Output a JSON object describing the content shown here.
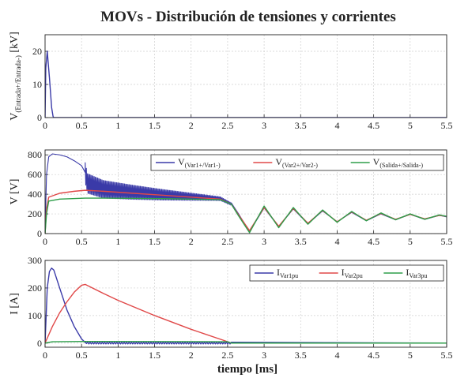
{
  "title": "MOVs - Distribución de tensiones y corrientes",
  "xlabel": "tiempo [ms]",
  "colors": {
    "blue": "#3a3aa8",
    "red": "#e04848",
    "green": "#2e9e4a"
  },
  "chart_data": [
    {
      "type": "line",
      "ylabel_main": "V",
      "ylabel_sub": "(Entrada+/Entrada-)",
      "ylabel_unit": " [kV]",
      "xlim": [
        0,
        5.5
      ],
      "ylim": [
        0,
        25
      ],
      "xticks": [
        0,
        0.5,
        1,
        1.5,
        2,
        2.5,
        3,
        3.5,
        4,
        4.5,
        5,
        5.5
      ],
      "xtick_labels": [
        "0",
        "0.5",
        "1",
        "1.5",
        "2",
        "2.5",
        "3",
        "3.5",
        "4",
        "4.5",
        "5",
        "5.5"
      ],
      "yticks": [
        0,
        10,
        20
      ],
      "ytick_labels": [
        "0",
        "10",
        "20"
      ],
      "grid": true,
      "series": [
        {
          "color": "blue",
          "x": [
            0,
            0.01,
            0.03,
            0.06,
            0.09,
            0.11,
            0.12,
            5.5
          ],
          "y": [
            0,
            15,
            20,
            12,
            3,
            0.3,
            0,
            0
          ]
        }
      ]
    },
    {
      "type": "line",
      "ylabel_main": "V [V]",
      "xlim": [
        0,
        5.5
      ],
      "ylim": [
        0,
        850
      ],
      "xticks": [
        0,
        0.5,
        1,
        1.5,
        2,
        2.5,
        3,
        3.5,
        4,
        4.5,
        5,
        5.5
      ],
      "xtick_labels": [
        "0",
        "0.5",
        "1",
        "1.5",
        "2",
        "2.5",
        "3",
        "3.5",
        "4",
        "4.5",
        "5",
        "5.5"
      ],
      "yticks": [
        0,
        200,
        400,
        600,
        800
      ],
      "ytick_labels": [
        "0",
        "200",
        "400",
        "600",
        "800"
      ],
      "grid": true,
      "legend_position": "top-right",
      "legend": [
        {
          "main": "V",
          "sub": "(Var1+/Var1-)",
          "color": "blue"
        },
        {
          "main": "V",
          "sub": "(Var2+/Var2-)",
          "color": "red"
        },
        {
          "main": "V",
          "sub": "(Salida+/Salida-)",
          "color": "green"
        }
      ],
      "series": [
        {
          "color": "blue",
          "oscillation": {
            "x_start": 0.55,
            "x_end": 2.55,
            "amplitude_start": 100,
            "amplitude_end": 12
          },
          "x": [
            0,
            0.02,
            0.05,
            0.1,
            0.2,
            0.3,
            0.4,
            0.5,
            0.55,
            0.58,
            0.8,
            1.2,
            1.6,
            2.0,
            2.4,
            2.55,
            2.65,
            2.8,
            3.0,
            3.2,
            3.4,
            3.6,
            3.8,
            4.0,
            4.2,
            4.4,
            4.6,
            4.8,
            5.0,
            5.2,
            5.4,
            5.5
          ],
          "y": [
            0,
            600,
            780,
            810,
            800,
            780,
            740,
            690,
            620,
            510,
            450,
            420,
            395,
            375,
            355,
            300,
            200,
            20,
            260,
            70,
            250,
            100,
            230,
            120,
            215,
            130,
            200,
            140,
            195,
            145,
            185,
            170
          ]
        },
        {
          "color": "red",
          "x": [
            0,
            0.02,
            0.05,
            0.2,
            0.4,
            0.55,
            0.8,
            1.2,
            1.6,
            2.0,
            2.4,
            2.55,
            2.65,
            2.8,
            3.0,
            3.2,
            3.4,
            3.6,
            3.8,
            4.0,
            4.2,
            4.4,
            4.6,
            4.8,
            5.0,
            5.2,
            5.4,
            5.5
          ],
          "y": [
            0,
            250,
            370,
            410,
            430,
            440,
            430,
            410,
            390,
            370,
            350,
            300,
            190,
            30,
            265,
            75,
            255,
            105,
            235,
            120,
            220,
            135,
            205,
            145,
            195,
            150,
            185,
            175
          ]
        },
        {
          "color": "green",
          "x": [
            0,
            0.02,
            0.05,
            0.2,
            0.55,
            0.8,
            1.6,
            2.4,
            2.55,
            2.65,
            2.8,
            3.0,
            3.2,
            3.4,
            3.6,
            3.8,
            4.0,
            4.2,
            4.4,
            4.6,
            4.8,
            5.0,
            5.2,
            5.4,
            5.5
          ],
          "y": [
            0,
            200,
            330,
            350,
            360,
            360,
            355,
            345,
            300,
            180,
            10,
            280,
            60,
            265,
            95,
            240,
            115,
            225,
            130,
            210,
            140,
            200,
            145,
            190,
            175
          ]
        }
      ]
    },
    {
      "type": "line",
      "ylabel_main": "I [A]",
      "xlim": [
        0,
        5.5
      ],
      "ylim": [
        -15,
        300
      ],
      "xticks": [
        0,
        0.5,
        1,
        1.5,
        2,
        2.5,
        3,
        3.5,
        4,
        4.5,
        5,
        5.5
      ],
      "xtick_labels": [
        "0",
        "0.5",
        "1",
        "1.5",
        "2",
        "2.5",
        "3",
        "3.5",
        "4",
        "4.5",
        "5",
        "5.5"
      ],
      "yticks": [
        0,
        100,
        200,
        300
      ],
      "ytick_labels": [
        "0",
        "100",
        "200",
        "300"
      ],
      "grid": true,
      "legend_position": "top-right",
      "legend": [
        {
          "main": "I",
          "sub": "Var1pu",
          "color": "blue"
        },
        {
          "main": "I",
          "sub": "Var2pu",
          "color": "red"
        },
        {
          "main": "I",
          "sub": "Var3pu",
          "color": "green"
        }
      ],
      "series": [
        {
          "color": "blue",
          "x": [
            0,
            0.03,
            0.06,
            0.09,
            0.12,
            0.2,
            0.3,
            0.4,
            0.5,
            0.55,
            0.6,
            1.0,
            2.0,
            5.5
          ],
          "y": [
            0,
            200,
            260,
            272,
            265,
            200,
            120,
            60,
            15,
            2,
            0,
            0,
            0,
            0
          ],
          "noise": {
            "x_start": 0.55,
            "x_end": 2.55,
            "amplitude": 3
          }
        },
        {
          "color": "red",
          "x": [
            0,
            0.1,
            0.2,
            0.3,
            0.4,
            0.5,
            0.55,
            0.8,
            1.0,
            1.5,
            2.0,
            2.5,
            2.55,
            5.5
          ],
          "y": [
            0,
            60,
            110,
            150,
            185,
            210,
            213,
            180,
            155,
            100,
            50,
            5,
            0,
            0
          ]
        },
        {
          "color": "green",
          "x": [
            0,
            0.1,
            0.55,
            2.5,
            2.55,
            5.5
          ],
          "y": [
            0,
            5,
            6,
            5,
            0,
            0
          ]
        }
      ]
    }
  ]
}
